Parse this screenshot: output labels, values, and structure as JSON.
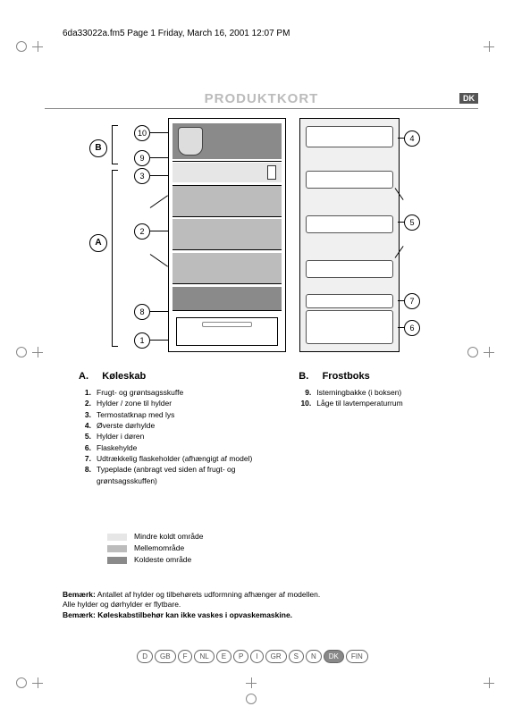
{
  "header_line": "6da33022a.fm5  Page 1  Friday, March 16, 2001  12:07 PM",
  "title": "PRODUKTKORT",
  "lang_flag": "DK",
  "colors": {
    "light": "#e6e6e6",
    "medium": "#bcbcbc",
    "dark": "#8a8a8a",
    "title_gray": "#bbbbbb"
  },
  "sections": {
    "A": {
      "letter": "A.",
      "title": "Køleskab"
    },
    "B": {
      "letter": "B.",
      "title": "Frostboks"
    }
  },
  "items_A": [
    {
      "n": "1.",
      "t": "Frugt- og grøntsagsskuffe"
    },
    {
      "n": "2.",
      "t": "Hylder / zone til hylder"
    },
    {
      "n": "3.",
      "t": "Termostatknap med lys"
    },
    {
      "n": "4.",
      "t": "Øverste dørhylde"
    },
    {
      "n": "5.",
      "t": "Hylder i døren"
    },
    {
      "n": "6.",
      "t": "Flaskehylde"
    },
    {
      "n": "7.",
      "t": "Udtrækkelig flaskeholder (afhængigt af model)"
    },
    {
      "n": "8.",
      "t": "Typeplade (anbragt ved siden af frugt- og grøntsagsskuffen)"
    }
  ],
  "items_B": [
    {
      "n": "9.",
      "t": "Isterningbakke (i boksen)"
    },
    {
      "n": "10.",
      "t": "Låge til lavtemperaturrum"
    }
  ],
  "temp_legend": [
    {
      "swatch": "light",
      "label": "Mindre koldt område"
    },
    {
      "swatch": "medium",
      "label": "Mellemområde"
    },
    {
      "swatch": "dark",
      "label": "Koldeste område"
    }
  ],
  "notes": {
    "l1a": "Bemærk:",
    "l1b": " Antallet af hylder og tilbehørets udformning afhænger af modellen.",
    "l2": "Alle hylder og dørhylder er flytbare.",
    "l3a": "Bemærk: ",
    "l3b": "Køleskabstilbehør kan ikke vaskes i opvaskemaskine."
  },
  "langs": [
    "D",
    "GB",
    "F",
    "NL",
    "E",
    "P",
    "I",
    "GR",
    "S",
    "N",
    "DK",
    "FIN"
  ],
  "active_lang": "DK",
  "callouts": {
    "c1": "1",
    "c2": "2",
    "c3": "3",
    "c4": "4",
    "c5": "5",
    "c6": "6",
    "c7": "7",
    "c8": "8",
    "c9": "9",
    "c10": "10",
    "A": "A",
    "B": "B"
  }
}
